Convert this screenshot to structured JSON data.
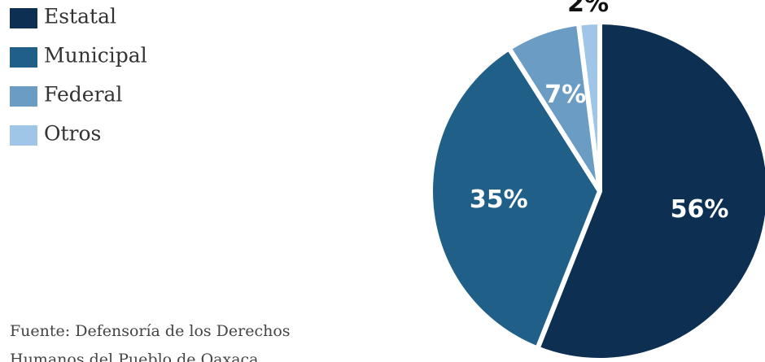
{
  "chart_data": {
    "type": "pie",
    "categories": [
      "Estatal",
      "Municipal",
      "Federal",
      "Otros"
    ],
    "values": [
      56,
      35,
      7,
      2
    ],
    "value_labels": [
      "56%",
      "35%",
      "7%",
      "2%"
    ],
    "colors": [
      "#0d2f52",
      "#1f5f88",
      "#6b9dc4",
      "#9fc6e6"
    ],
    "legend": "top-left",
    "source": "Fuente: Defensoría de los Derechos Humanos del Pueblo de Oaxaca"
  }
}
